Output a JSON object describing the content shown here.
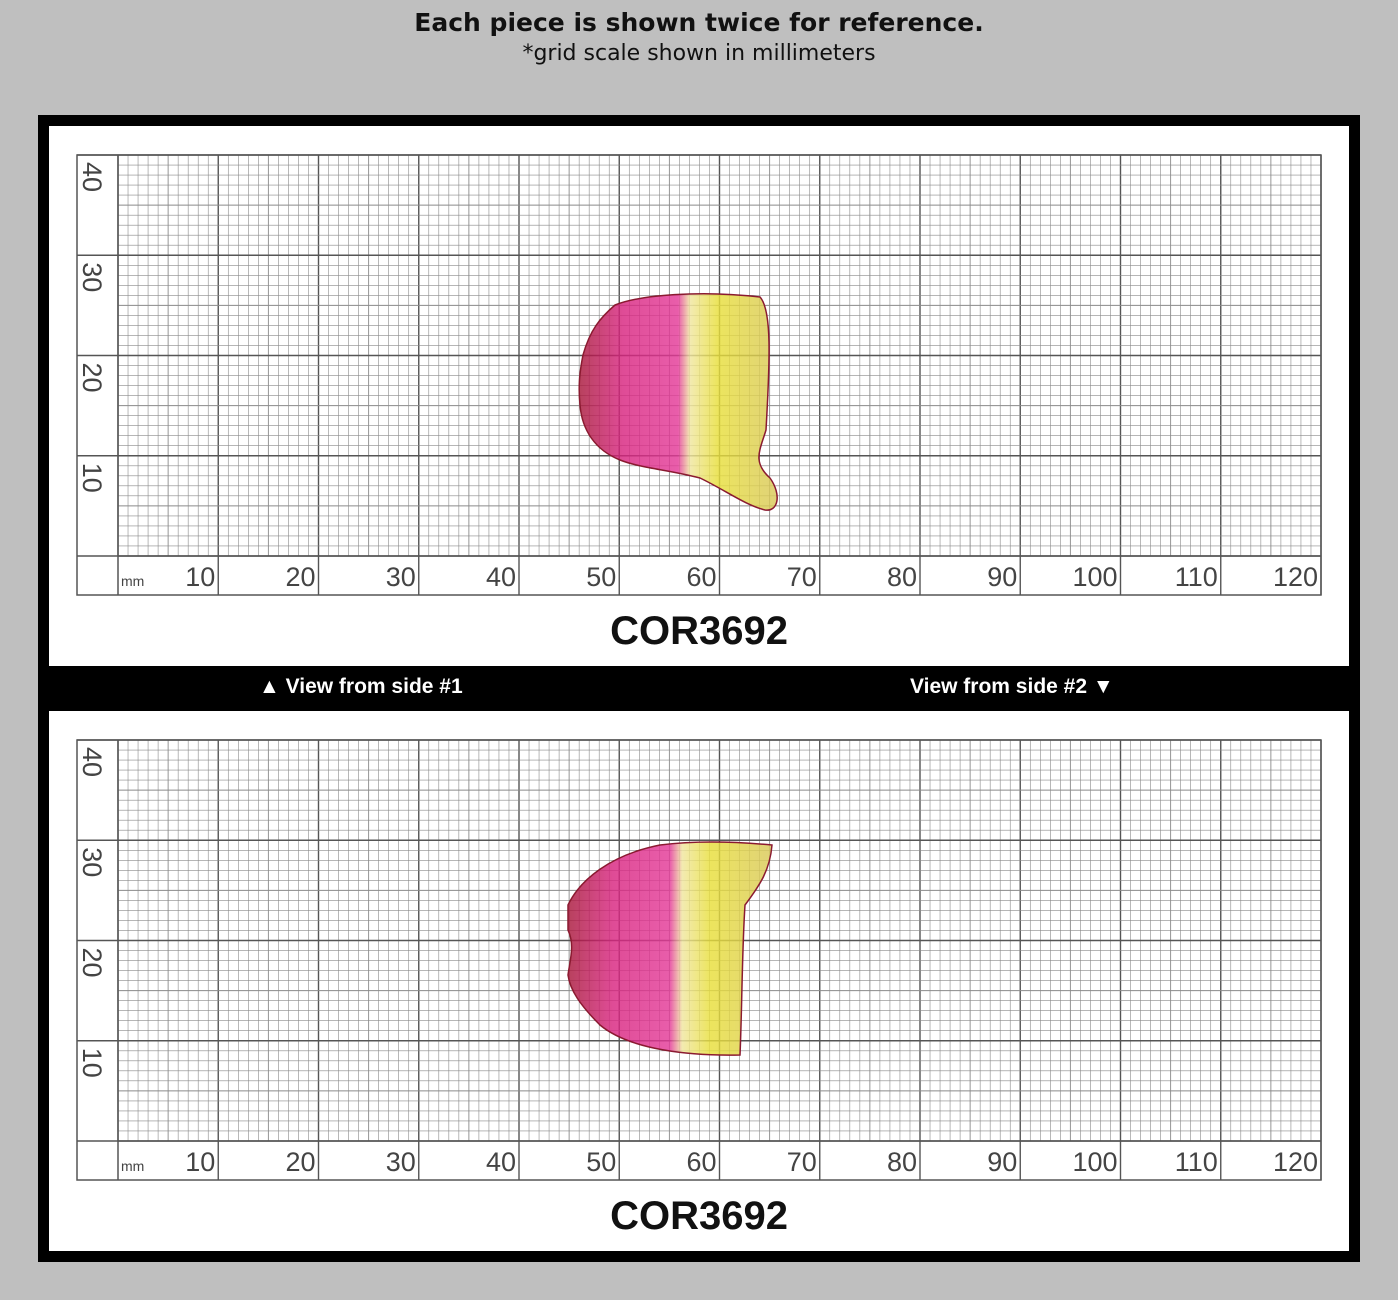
{
  "header": {
    "title": "Each piece is shown twice for reference.",
    "subtitle": "*grid scale shown in millimeters"
  },
  "panels": [
    {
      "code": "COR3692",
      "scale": {
        "unit": "mm",
        "x_labels": [
          10,
          20,
          30,
          40,
          50,
          60,
          70,
          80,
          90,
          100,
          110,
          120
        ],
        "y_labels": [
          10,
          20,
          30,
          40
        ]
      }
    },
    {
      "code": "COR3692",
      "scale": {
        "unit": "mm",
        "x_labels": [
          10,
          20,
          30,
          40,
          50,
          60,
          70,
          80,
          90,
          100,
          110,
          120
        ],
        "y_labels": [
          10,
          20,
          30,
          40
        ]
      }
    }
  ],
  "side_labels": [
    "▲ View from side #1",
    "View from side #2 ▼"
  ]
}
